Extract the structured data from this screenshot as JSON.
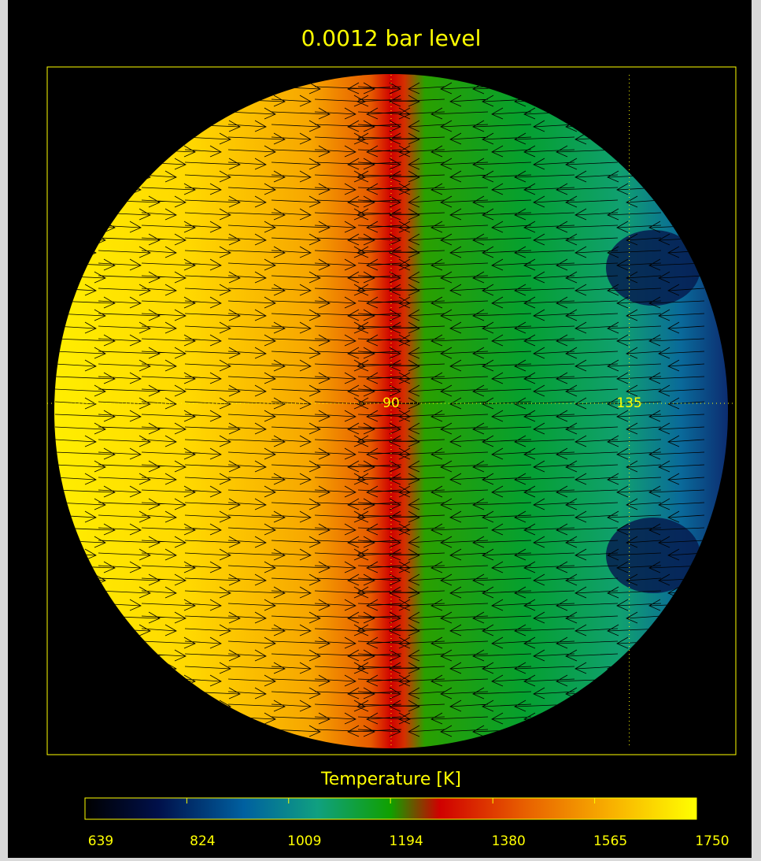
{
  "chart_data": {
    "type": "orthographic-map",
    "title": "0.0012 bar level",
    "xlim": [
      0,
      180
    ],
    "xticks": [
      90,
      135
    ],
    "colorbar": {
      "label": "Temperature [K]",
      "lim": [
        639,
        1750
      ],
      "ticks": [
        639,
        824,
        1009,
        1194,
        1380,
        1565,
        1750
      ]
    }
  }
}
